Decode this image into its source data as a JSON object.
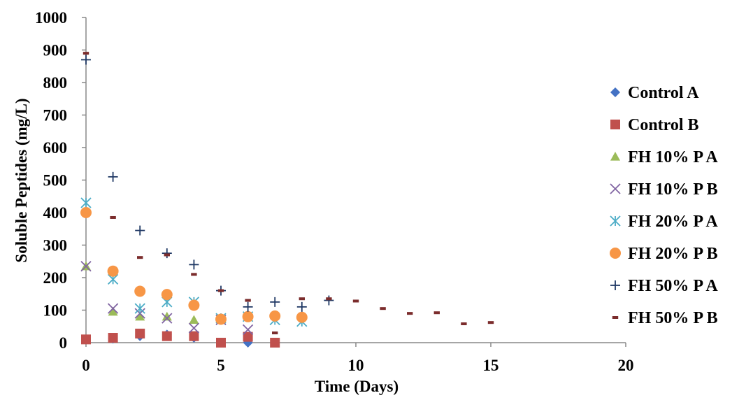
{
  "chart_data": {
    "type": "scatter",
    "title": "",
    "xlabel": "Time (Days)",
    "ylabel": "Soluble Peptides (mg/L)",
    "xlim": [
      0,
      20
    ],
    "ylim": [
      0,
      1000
    ],
    "xticks": [
      "0",
      "5",
      "10",
      "15",
      "20"
    ],
    "yticks": [
      "0",
      "100",
      "200",
      "300",
      "400",
      "500",
      "600",
      "700",
      "800",
      "900",
      "1000"
    ],
    "grid": false,
    "legend_position": "right",
    "series": [
      {
        "name": "Control A",
        "marker": "diamond",
        "color": "#4472C4",
        "x": [
          0,
          1,
          2,
          3,
          4,
          5,
          6
        ],
        "y": [
          10,
          12,
          20,
          25,
          15,
          0,
          0
        ]
      },
      {
        "name": "Control B",
        "marker": "square",
        "color": "#C0504D",
        "x": [
          0,
          1,
          2,
          3,
          4,
          5,
          6,
          7
        ],
        "y": [
          10,
          15,
          28,
          20,
          20,
          0,
          18,
          0
        ]
      },
      {
        "name": "FH 10% P A",
        "marker": "triangle",
        "color": "#9BBB59",
        "x": [
          0,
          1,
          2,
          3,
          4,
          5
        ],
        "y": [
          235,
          95,
          80,
          80,
          70,
          75
        ]
      },
      {
        "name": "FH 10% P B",
        "marker": "x",
        "color": "#8064A2",
        "x": [
          0,
          1,
          2,
          3,
          4,
          5,
          6
        ],
        "y": [
          235,
          105,
          90,
          75,
          45,
          70,
          40
        ]
      },
      {
        "name": "FH 20% P A",
        "marker": "asterisk",
        "color": "#4BACC6",
        "x": [
          0,
          1,
          2,
          3,
          4,
          5,
          6,
          7,
          8
        ],
        "y": [
          430,
          195,
          105,
          125,
          125,
          75,
          80,
          70,
          65
        ]
      },
      {
        "name": "FH 20% P B",
        "marker": "circle",
        "color": "#F79646",
        "x": [
          0,
          1,
          2,
          3,
          4,
          5,
          6,
          7,
          8
        ],
        "y": [
          400,
          220,
          158,
          148,
          115,
          72,
          80,
          82,
          78
        ]
      },
      {
        "name": "FH 50% P A",
        "marker": "plus",
        "color": "#1F3864",
        "x": [
          0,
          1,
          2,
          3,
          4,
          5,
          6,
          7,
          8,
          9
        ],
        "y": [
          870,
          510,
          345,
          275,
          240,
          160,
          110,
          125,
          110,
          130
        ]
      },
      {
        "name": "FH 50% P B",
        "marker": "dash",
        "color": "#7B2C2C",
        "x": [
          0,
          1,
          2,
          3,
          4,
          5,
          6,
          7,
          8,
          9,
          10,
          11,
          12,
          13,
          14,
          15
        ],
        "y": [
          890,
          385,
          262,
          270,
          210,
          160,
          130,
          30,
          135,
          135,
          128,
          105,
          90,
          92,
          58,
          62
        ]
      }
    ]
  }
}
